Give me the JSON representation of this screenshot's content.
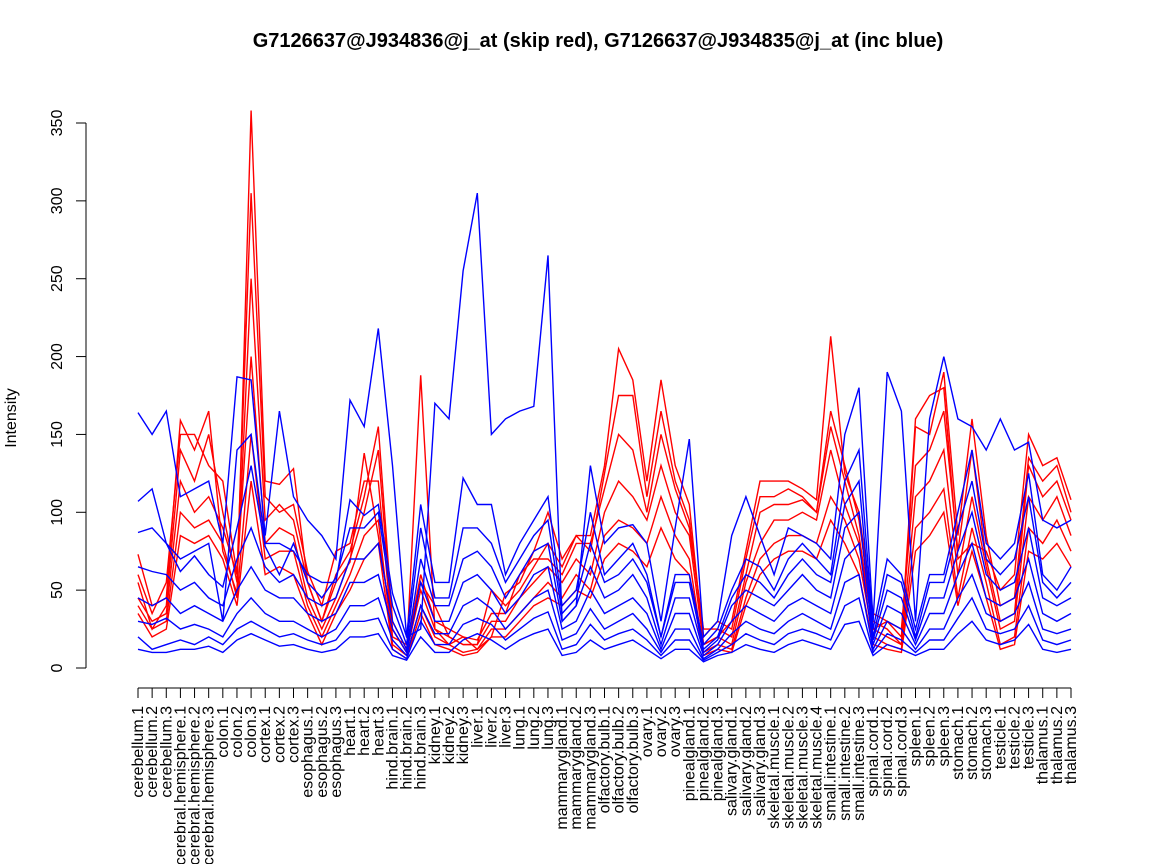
{
  "chart_data": {
    "type": "line",
    "title": "G7126637@J934836@j_at (skip red), G7126637@J934835@j_at (inc blue)",
    "xlabel": "",
    "ylabel": "Intensity",
    "ylim": [
      0,
      350
    ],
    "yticks": [
      0,
      50,
      100,
      150,
      200,
      250,
      300,
      350
    ],
    "categories": [
      "cerebellum.1",
      "cerebellum.2",
      "cerebellum.3",
      "cerebral.hemisphere.1",
      "cerebral.hemisphere.2",
      "cerebral.hemisphere.3",
      "colon.1",
      "colon.2",
      "colon.3",
      "cortex.1",
      "cortex.2",
      "cortex.3",
      "esophagus.1",
      "esophagus.2",
      "esophagus.3",
      "heart.1",
      "heart.2",
      "heart.3",
      "hind.brain.1",
      "hind.brain.2",
      "hind.brain.3",
      "kidney.1",
      "kidney.2",
      "kidney.3",
      "liver.1",
      "liver.2",
      "liver.3",
      "lung.1",
      "lung.2",
      "lung.3",
      "mammarygland.1",
      "mammarygland.2",
      "mammarygland.3",
      "olfactory.bulb.1",
      "olfactory.bulb.2",
      "olfactory.bulb.3",
      "ovary.1",
      "ovary.2",
      "ovary.3",
      "pinealgland.1",
      "pinealgland.2",
      "pinealgland.3",
      "salivary.gland.1",
      "salivary.gland.2",
      "salivary.gland.3",
      "skeletal.muscle.1",
      "skeletal.muscle.2",
      "skeletal.muscle.3",
      "skeletal.muscle.4",
      "small.intestine.1",
      "small.intestine.2",
      "small.intestine.3",
      "spinal.cord.1",
      "spinal.cord.2",
      "spinal.cord.3",
      "spleen.1",
      "spleen.2",
      "spleen.3",
      "stomach.1",
      "stomach.2",
      "stomach.3",
      "testicle.1",
      "testicle.2",
      "testicle.3",
      "thalamus.1",
      "thalamus.2",
      "thalamus.3"
    ],
    "colors": {
      "skip": "#ff0000",
      "inc": "#0000ff"
    },
    "series": [
      {
        "group": "skip",
        "values": [
          73,
          40,
          45,
          159,
          140,
          165,
          75,
          48,
          358,
          120,
          118,
          128,
          55,
          30,
          55,
          68,
          138,
          85,
          25,
          10,
          188,
          25,
          15,
          20,
          12,
          20,
          48,
          55,
          75,
          100,
          70,
          85,
          85,
          130,
          205,
          185,
          120,
          185,
          130,
          105,
          15,
          20,
          30,
          75,
          120,
          120,
          120,
          115,
          108,
          213,
          125,
          100,
          35,
          30,
          20,
          160,
          175,
          180,
          70,
          80,
          75,
          50,
          60,
          150,
          130,
          135,
          108
        ]
      },
      {
        "group": "skip",
        "values": [
          60,
          35,
          55,
          150,
          150,
          130,
          120,
          60,
          305,
          110,
          100,
          105,
          62,
          40,
          75,
          80,
          120,
          120,
          20,
          15,
          55,
          40,
          20,
          15,
          15,
          50,
          40,
          50,
          65,
          80,
          65,
          85,
          75,
          125,
          175,
          175,
          110,
          165,
          120,
          95,
          20,
          30,
          25,
          70,
          110,
          110,
          115,
          110,
          100,
          165,
          130,
          95,
          30,
          25,
          15,
          155,
          150,
          190,
          85,
          160,
          85,
          40,
          45,
          135,
          120,
          130,
          100
        ]
      },
      {
        "group": "skip",
        "values": [
          55,
          25,
          40,
          140,
          120,
          150,
          100,
          55,
          250,
          95,
          105,
          95,
          55,
          30,
          60,
          75,
          110,
          155,
          30,
          12,
          60,
          30,
          25,
          20,
          18,
          35,
          35,
          60,
          70,
          70,
          60,
          80,
          80,
          115,
          150,
          140,
          100,
          150,
          115,
          90,
          25,
          25,
          20,
          60,
          100,
          105,
          105,
          108,
          100,
          155,
          120,
          85,
          25,
          30,
          25,
          130,
          140,
          165,
          75,
          140,
          70,
          30,
          35,
          130,
          110,
          120,
          95
        ]
      },
      {
        "group": "skip",
        "values": [
          45,
          30,
          35,
          120,
          100,
          110,
          90,
          60,
          200,
          80,
          90,
          85,
          45,
          25,
          45,
          70,
          100,
          140,
          25,
          10,
          50,
          25,
          20,
          15,
          15,
          30,
          30,
          45,
          55,
          65,
          55,
          70,
          60,
          100,
          120,
          110,
          95,
          130,
          100,
          85,
          15,
          20,
          15,
          55,
          80,
          95,
          95,
          100,
          95,
          140,
          105,
          80,
          25,
          20,
          15,
          110,
          120,
          140,
          60,
          110,
          65,
          25,
          30,
          110,
          95,
          110,
          85
        ]
      },
      {
        "group": "skip",
        "values": [
          40,
          25,
          30,
          100,
          90,
          95,
          80,
          45,
          150,
          70,
          75,
          75,
          40,
          20,
          40,
          60,
          85,
          95,
          15,
          8,
          40,
          20,
          15,
          10,
          12,
          25,
          25,
          35,
          45,
          55,
          45,
          60,
          50,
          85,
          95,
          90,
          80,
          110,
          85,
          70,
          10,
          15,
          12,
          45,
          70,
          80,
          85,
          85,
          80,
          110,
          95,
          70,
          20,
          15,
          12,
          90,
          100,
          115,
          45,
          90,
          55,
          15,
          20,
          90,
          80,
          95,
          75
        ]
      },
      {
        "group": "skip",
        "values": [
          35,
          20,
          25,
          85,
          80,
          85,
          70,
          40,
          120,
          60,
          65,
          60,
          35,
          15,
          35,
          50,
          70,
          80,
          12,
          6,
          35,
          15,
          12,
          8,
          10,
          20,
          20,
          30,
          40,
          45,
          40,
          50,
          45,
          70,
          80,
          75,
          65,
          90,
          70,
          60,
          8,
          12,
          10,
          40,
          60,
          70,
          75,
          75,
          70,
          95,
          80,
          60,
          15,
          12,
          10,
          75,
          85,
          100,
          40,
          75,
          45,
          12,
          15,
          75,
          70,
          80,
          65
        ]
      },
      {
        "group": "inc",
        "values": [
          164,
          150,
          165,
          110,
          115,
          120,
          80,
          187,
          185,
          85,
          165,
          110,
          95,
          85,
          70,
          172,
          155,
          218,
          130,
          20,
          25,
          170,
          160,
          255,
          305,
          150,
          160,
          165,
          168,
          265,
          30,
          40,
          130,
          80,
          90,
          92,
          80,
          30,
          90,
          147,
          20,
          30,
          85,
          110,
          85,
          60,
          90,
          85,
          80,
          70,
          150,
          180,
          30,
          190,
          165,
          30,
          160,
          200,
          160,
          155,
          140,
          160,
          140,
          145,
          95,
          90,
          95
        ]
      },
      {
        "group": "inc",
        "values": [
          107,
          115,
          80,
          70,
          75,
          80,
          30,
          140,
          150,
          80,
          80,
          75,
          60,
          55,
          55,
          108,
          98,
          105,
          48,
          20,
          105,
          55,
          55,
          122,
          105,
          105,
          60,
          80,
          95,
          110,
          40,
          50,
          100,
          60,
          70,
          80,
          60,
          20,
          60,
          60,
          15,
          25,
          50,
          70,
          65,
          50,
          70,
          80,
          70,
          60,
          120,
          140,
          25,
          70,
          60,
          25,
          60,
          60,
          100,
          140,
          80,
          70,
          80,
          125,
          60,
          50,
          65
        ]
      },
      {
        "group": "inc",
        "values": [
          87,
          90,
          80,
          62,
          72,
          60,
          52,
          90,
          130,
          78,
          60,
          80,
          55,
          45,
          58,
          90,
          90,
          100,
          40,
          15,
          90,
          45,
          45,
          90,
          90,
          80,
          55,
          70,
          85,
          95,
          35,
          45,
          80,
          55,
          60,
          70,
          55,
          20,
          55,
          55,
          12,
          20,
          45,
          60,
          55,
          45,
          60,
          70,
          60,
          55,
          105,
          120,
          20,
          60,
          55,
          20,
          55,
          55,
          90,
          120,
          70,
          60,
          70,
          110,
          55,
          45,
          55
        ]
      },
      {
        "group": "inc",
        "values": [
          65,
          62,
          60,
          50,
          55,
          45,
          40,
          70,
          90,
          65,
          55,
          60,
          45,
          40,
          45,
          70,
          70,
          80,
          30,
          12,
          70,
          40,
          40,
          70,
          75,
          65,
          45,
          60,
          75,
          80,
          30,
          40,
          65,
          45,
          50,
          60,
          45,
          15,
          45,
          45,
          10,
          18,
          40,
          50,
          45,
          40,
          50,
          60,
          50,
          45,
          90,
          100,
          18,
          50,
          45,
          18,
          45,
          45,
          75,
          100,
          60,
          50,
          55,
          90,
          45,
          40,
          45
        ]
      },
      {
        "group": "inc",
        "values": [
          45,
          40,
          45,
          35,
          40,
          35,
          30,
          50,
          65,
          50,
          45,
          45,
          35,
          30,
          35,
          55,
          55,
          60,
          25,
          10,
          55,
          30,
          30,
          55,
          60,
          50,
          35,
          45,
          60,
          65,
          25,
          30,
          50,
          35,
          40,
          45,
          35,
          12,
          35,
          35,
          8,
          15,
          30,
          40,
          35,
          30,
          40,
          45,
          40,
          35,
          70,
          80,
          15,
          40,
          35,
          15,
          35,
          35,
          60,
          80,
          45,
          40,
          45,
          70,
          35,
          30,
          35
        ]
      },
      {
        "group": "inc",
        "values": [
          30,
          28,
          32,
          25,
          28,
          25,
          20,
          35,
          45,
          35,
          30,
          30,
          25,
          20,
          25,
          40,
          40,
          45,
          18,
          8,
          40,
          22,
          22,
          40,
          45,
          38,
          25,
          35,
          45,
          50,
          18,
          22,
          38,
          25,
          30,
          35,
          25,
          10,
          25,
          25,
          6,
          12,
          22,
          30,
          25,
          22,
          30,
          35,
          30,
          25,
          55,
          60,
          12,
          30,
          25,
          12,
          25,
          25,
          45,
          60,
          35,
          30,
          35,
          55,
          25,
          22,
          25
        ]
      },
      {
        "group": "inc",
        "values": [
          20,
          12,
          15,
          18,
          15,
          20,
          15,
          25,
          30,
          25,
          20,
          22,
          18,
          15,
          18,
          30,
          30,
          32,
          12,
          6,
          30,
          15,
          15,
          28,
          32,
          28,
          18,
          25,
          32,
          36,
          12,
          15,
          28,
          18,
          22,
          25,
          18,
          8,
          18,
          18,
          5,
          10,
          15,
          22,
          18,
          15,
          22,
          25,
          22,
          18,
          40,
          45,
          10,
          22,
          18,
          10,
          18,
          18,
          32,
          45,
          25,
          22,
          25,
          40,
          18,
          15,
          18
        ]
      },
      {
        "group": "inc",
        "values": [
          12,
          10,
          10,
          12,
          12,
          14,
          10,
          18,
          22,
          18,
          14,
          15,
          12,
          10,
          12,
          20,
          20,
          22,
          8,
          5,
          20,
          10,
          10,
          18,
          22,
          18,
          12,
          18,
          22,
          25,
          8,
          10,
          18,
          12,
          15,
          18,
          12,
          6,
          12,
          12,
          4,
          8,
          10,
          15,
          12,
          10,
          15,
          18,
          15,
          12,
          28,
          30,
          8,
          15,
          12,
          8,
          12,
          12,
          22,
          30,
          18,
          15,
          18,
          28,
          12,
          10,
          12
        ]
      }
    ]
  }
}
